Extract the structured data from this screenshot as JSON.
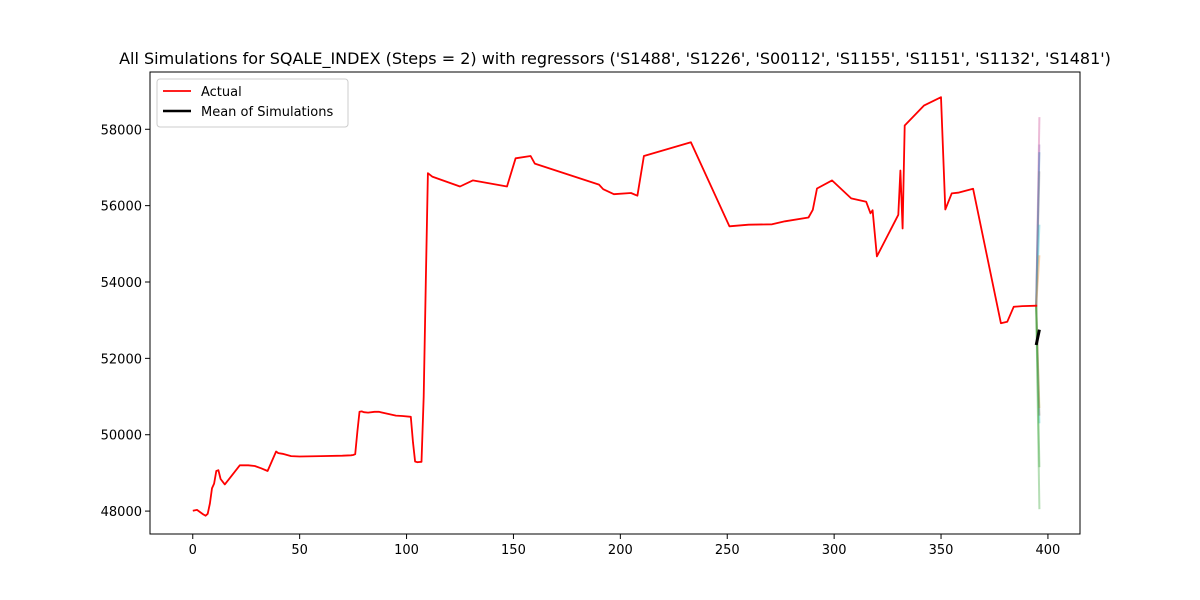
{
  "chart_data": {
    "type": "line",
    "title": "All Simulations for SQALE_INDEX (Steps = 2) with regressors ('S1488', 'S1226', 'S00112', 'S1155', 'S1151', 'S1132', 'S1481')",
    "xlabel": "",
    "ylabel": "",
    "xlim": [
      -20,
      415
    ],
    "ylim": [
      47400,
      59500
    ],
    "xticks": [
      0,
      50,
      100,
      150,
      200,
      250,
      300,
      350,
      400
    ],
    "yticks": [
      48000,
      50000,
      52000,
      54000,
      56000,
      58000
    ],
    "grid": false,
    "legend": {
      "placement": "upper-left",
      "entries": [
        {
          "label": "Actual",
          "color": "#ff0000"
        },
        {
          "label": "Mean of Simulations",
          "color": "#000000"
        }
      ]
    },
    "series": [
      {
        "name": "Actual",
        "color": "#ff0000",
        "x": [
          0,
          2,
          4,
          5,
          6,
          7,
          8,
          9,
          10,
          11,
          12,
          13,
          15,
          18,
          22,
          26,
          29,
          32,
          35,
          37,
          39,
          40,
          42,
          46,
          50,
          60,
          70,
          74,
          75,
          76,
          77,
          78,
          79,
          80,
          82,
          85,
          87,
          90,
          95,
          98,
          102,
          103,
          104,
          105,
          106,
          107,
          108,
          109,
          110,
          112,
          125,
          131,
          147,
          151,
          158,
          160,
          190,
          192,
          197,
          205,
          208,
          211,
          233,
          251,
          260,
          271,
          277,
          288,
          290,
          292,
          299,
          308,
          315,
          317,
          318,
          320,
          330,
          331,
          332,
          333,
          342,
          350,
          352,
          355,
          358,
          365,
          378,
          381,
          384,
          388,
          395
        ],
        "values": [
          48010,
          48030,
          47950,
          47910,
          47880,
          47930,
          48200,
          48600,
          48720,
          49050,
          49070,
          48840,
          48700,
          48910,
          49200,
          49200,
          49180,
          49120,
          49050,
          49310,
          49560,
          49520,
          49500,
          49440,
          49430,
          49440,
          49450,
          49460,
          49470,
          49490,
          50090,
          50600,
          50610,
          50590,
          50580,
          50600,
          50600,
          50560,
          50500,
          50490,
          50470,
          49800,
          49300,
          49280,
          49285,
          49290,
          51000,
          54000,
          56850,
          56760,
          56500,
          56660,
          56500,
          57240,
          57300,
          57100,
          56550,
          56430,
          56300,
          56330,
          56260,
          57300,
          57660,
          55460,
          55500,
          55510,
          55590,
          55690,
          55890,
          56450,
          56660,
          56190,
          56100,
          55800,
          55880,
          54670,
          55760,
          56920,
          55400,
          58100,
          58620,
          58840,
          55900,
          56320,
          56340,
          56440,
          52920,
          52960,
          53350,
          53370,
          53380
        ]
      },
      {
        "name": "Mean of Simulations",
        "color": "#000000",
        "x": [
          394.5,
          396
        ],
        "values": [
          52350,
          52750
        ]
      }
    ],
    "simulations": [
      {
        "color": "#c83c8c",
        "x": [
          394.5,
          396
        ],
        "values": [
          53380,
          58320
        ]
      },
      {
        "color": "#9467bd",
        "x": [
          394.5,
          396
        ],
        "values": [
          53380,
          57600
        ]
      },
      {
        "color": "#1f77b4",
        "x": [
          394.5,
          396
        ],
        "values": [
          53380,
          57400
        ]
      },
      {
        "color": "#7f7f7f",
        "x": [
          394.5,
          396
        ],
        "values": [
          53380,
          56900
        ]
      },
      {
        "color": "#17becf",
        "x": [
          394.5,
          396
        ],
        "values": [
          53380,
          55500
        ]
      },
      {
        "color": "#ff7f0e",
        "x": [
          394.5,
          396
        ],
        "values": [
          53380,
          54700
        ]
      },
      {
        "color": "#17becf",
        "x": [
          394.5,
          396
        ],
        "values": [
          53380,
          50300
        ]
      },
      {
        "color": "#bcbd22",
        "x": [
          394.5,
          396
        ],
        "values": [
          53380,
          50700
        ]
      },
      {
        "color": "#8c564b",
        "x": [
          394.5,
          396
        ],
        "values": [
          53380,
          50500
        ]
      },
      {
        "color": "#2ca02c",
        "x": [
          394.5,
          396
        ],
        "values": [
          53380,
          49150
        ]
      },
      {
        "color": "#2ca02c",
        "x": [
          394.5,
          396
        ],
        "values": [
          53380,
          48050
        ]
      }
    ]
  }
}
